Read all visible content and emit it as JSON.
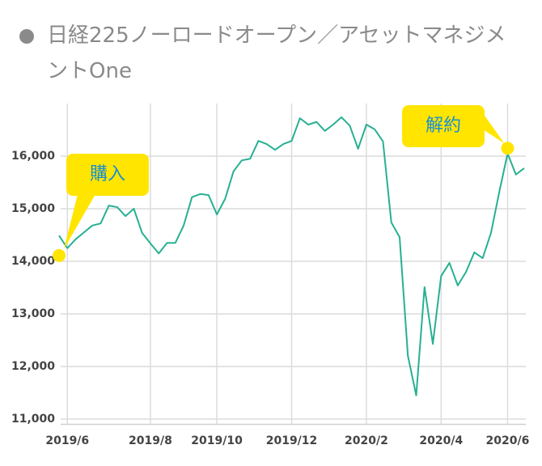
{
  "chart_data": {
    "type": "line",
    "title": "日経225ノーロードオープン／アセットマネジメントOne",
    "categories": [
      null,
      "2019/6",
      null,
      null,
      null,
      null,
      null,
      null,
      null,
      null,
      null,
      "2019/8",
      null,
      null,
      null,
      null,
      null,
      null,
      null,
      "2019/10",
      null,
      null,
      null,
      null,
      null,
      null,
      null,
      null,
      "2019/12",
      null,
      null,
      null,
      null,
      null,
      null,
      null,
      null,
      "2020/2",
      null,
      null,
      null,
      null,
      null,
      null,
      null,
      null,
      "2020/4",
      null,
      null,
      null,
      null,
      null,
      null,
      null,
      "2020/6",
      null,
      null
    ],
    "series": [
      {
        "name": "日経225ノーロードオープン",
        "color": "#27b092",
        "values": [
          14490,
          14250,
          14420,
          14550,
          14680,
          14720,
          15060,
          15030,
          14860,
          15000,
          14540,
          14340,
          14150,
          14350,
          14350,
          14680,
          15220,
          15280,
          15260,
          14890,
          15190,
          15710,
          15920,
          15950,
          16290,
          16230,
          16120,
          16230,
          16290,
          16720,
          16600,
          16650,
          16480,
          16600,
          16740,
          16580,
          16140,
          16600,
          16510,
          16280,
          14740,
          14460,
          12200,
          11450,
          13510,
          12430,
          13720,
          13970,
          13540,
          13800,
          14170,
          14060,
          14540,
          15320,
          16050,
          15650,
          15770
        ]
      }
    ],
    "annotations": [
      {
        "text": "購入",
        "at": 0,
        "value": 14110
      },
      {
        "text": "解約",
        "at": 54,
        "value": 16150
      }
    ],
    "marker_color": "#ffe500",
    "ylim": [
      10900,
      17000
    ],
    "yticks": [
      {
        "value": 11000,
        "label": "11,000"
      },
      {
        "value": 12000,
        "label": "12,000"
      },
      {
        "value": 13000,
        "label": "13,000"
      },
      {
        "value": 14000,
        "label": "14,000"
      },
      {
        "value": 15000,
        "label": "15,000"
      },
      {
        "value": 16000,
        "label": "16,000"
      }
    ],
    "grid": true
  }
}
